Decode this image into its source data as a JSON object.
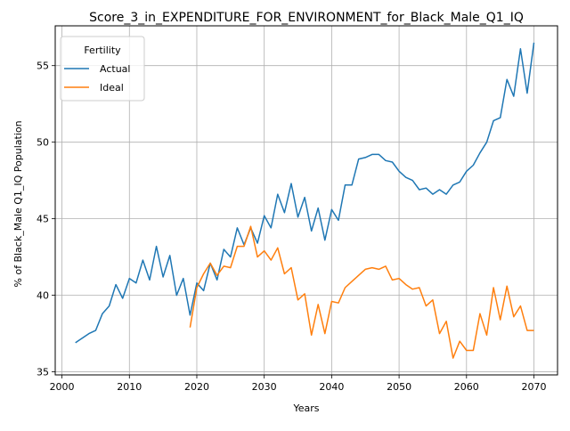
{
  "chart_data": {
    "type": "line",
    "title": "Score_3_in_EXPENDITURE_FOR_ENVIRONMENT_for_Black_Male_Q1_IQ",
    "xlabel": "Years",
    "ylabel": "% of Black_Male Q1_IQ Population",
    "xlim": [
      1999,
      2073.5
    ],
    "ylim": [
      34.8,
      57.6
    ],
    "xticks": [
      2000,
      2010,
      2020,
      2030,
      2040,
      2050,
      2060,
      2070
    ],
    "yticks": [
      35,
      40,
      45,
      50,
      55
    ],
    "grid": true,
    "legend": {
      "title": "Fertility",
      "placement": "top-left"
    },
    "series": [
      {
        "name": "Actual",
        "color": "#1f77b4",
        "x": [
          2002,
          2003,
          2004,
          2005,
          2006,
          2007,
          2008,
          2009,
          2010,
          2011,
          2012,
          2013,
          2014,
          2015,
          2016,
          2017,
          2018,
          2019,
          2020,
          2021,
          2022,
          2023,
          2024,
          2025,
          2026,
          2027,
          2028,
          2029,
          2030,
          2031,
          2032,
          2033,
          2034,
          2035,
          2036,
          2037,
          2038,
          2039,
          2040,
          2041,
          2042,
          2043,
          2044,
          2045,
          2046,
          2047,
          2048,
          2049,
          2050,
          2051,
          2052,
          2053,
          2054,
          2055,
          2056,
          2057,
          2058,
          2059,
          2060,
          2061,
          2062,
          2063,
          2064,
          2065,
          2066,
          2067,
          2068,
          2069,
          2070
        ],
        "y": [
          36.9,
          37.2,
          37.5,
          37.7,
          38.8,
          39.3,
          40.7,
          39.8,
          41.1,
          40.8,
          42.3,
          41.0,
          43.2,
          41.2,
          42.6,
          40.0,
          41.1,
          38.7,
          40.8,
          40.3,
          42.1,
          41.0,
          43.0,
          42.5,
          44.4,
          43.3,
          44.4,
          43.4,
          45.2,
          44.4,
          46.6,
          45.4,
          47.3,
          45.1,
          46.4,
          44.2,
          45.7,
          43.6,
          45.6,
          44.9,
          47.2,
          47.2,
          48.9,
          49.0,
          49.2,
          49.2,
          48.8,
          48.7,
          48.1,
          47.7,
          47.5,
          46.9,
          47.0,
          46.6,
          46.9,
          46.6,
          47.2,
          47.4,
          48.1,
          48.5,
          49.3,
          50.0,
          51.4,
          51.6,
          54.1,
          53.0,
          56.1,
          53.2,
          56.5
        ]
      },
      {
        "name": "Ideal",
        "color": "#ff7f0e",
        "x": [
          2019,
          2020,
          2021,
          2022,
          2023,
          2024,
          2025,
          2026,
          2027,
          2028,
          2029,
          2030,
          2031,
          2032,
          2033,
          2034,
          2035,
          2036,
          2037,
          2038,
          2039,
          2040,
          2041,
          2042,
          2043,
          2044,
          2045,
          2046,
          2047,
          2048,
          2049,
          2050,
          2051,
          2052,
          2053,
          2054,
          2055,
          2056,
          2057,
          2058,
          2059,
          2060,
          2061,
          2062,
          2063,
          2064,
          2065,
          2066,
          2067,
          2068,
          2069,
          2070
        ],
        "y": [
          37.9,
          40.5,
          41.4,
          42.1,
          41.3,
          41.9,
          41.8,
          43.2,
          43.2,
          44.5,
          42.5,
          42.9,
          42.3,
          43.1,
          41.4,
          41.8,
          39.7,
          40.1,
          37.4,
          39.4,
          37.5,
          39.6,
          39.5,
          40.5,
          40.9,
          41.3,
          41.7,
          41.8,
          41.7,
          41.9,
          41.0,
          41.1,
          40.7,
          40.4,
          40.5,
          39.3,
          39.7,
          37.5,
          38.3,
          35.9,
          37.0,
          36.4,
          36.4,
          38.8,
          37.4,
          40.5,
          38.4,
          40.6,
          38.6,
          39.3,
          37.7,
          37.7
        ]
      }
    ]
  }
}
